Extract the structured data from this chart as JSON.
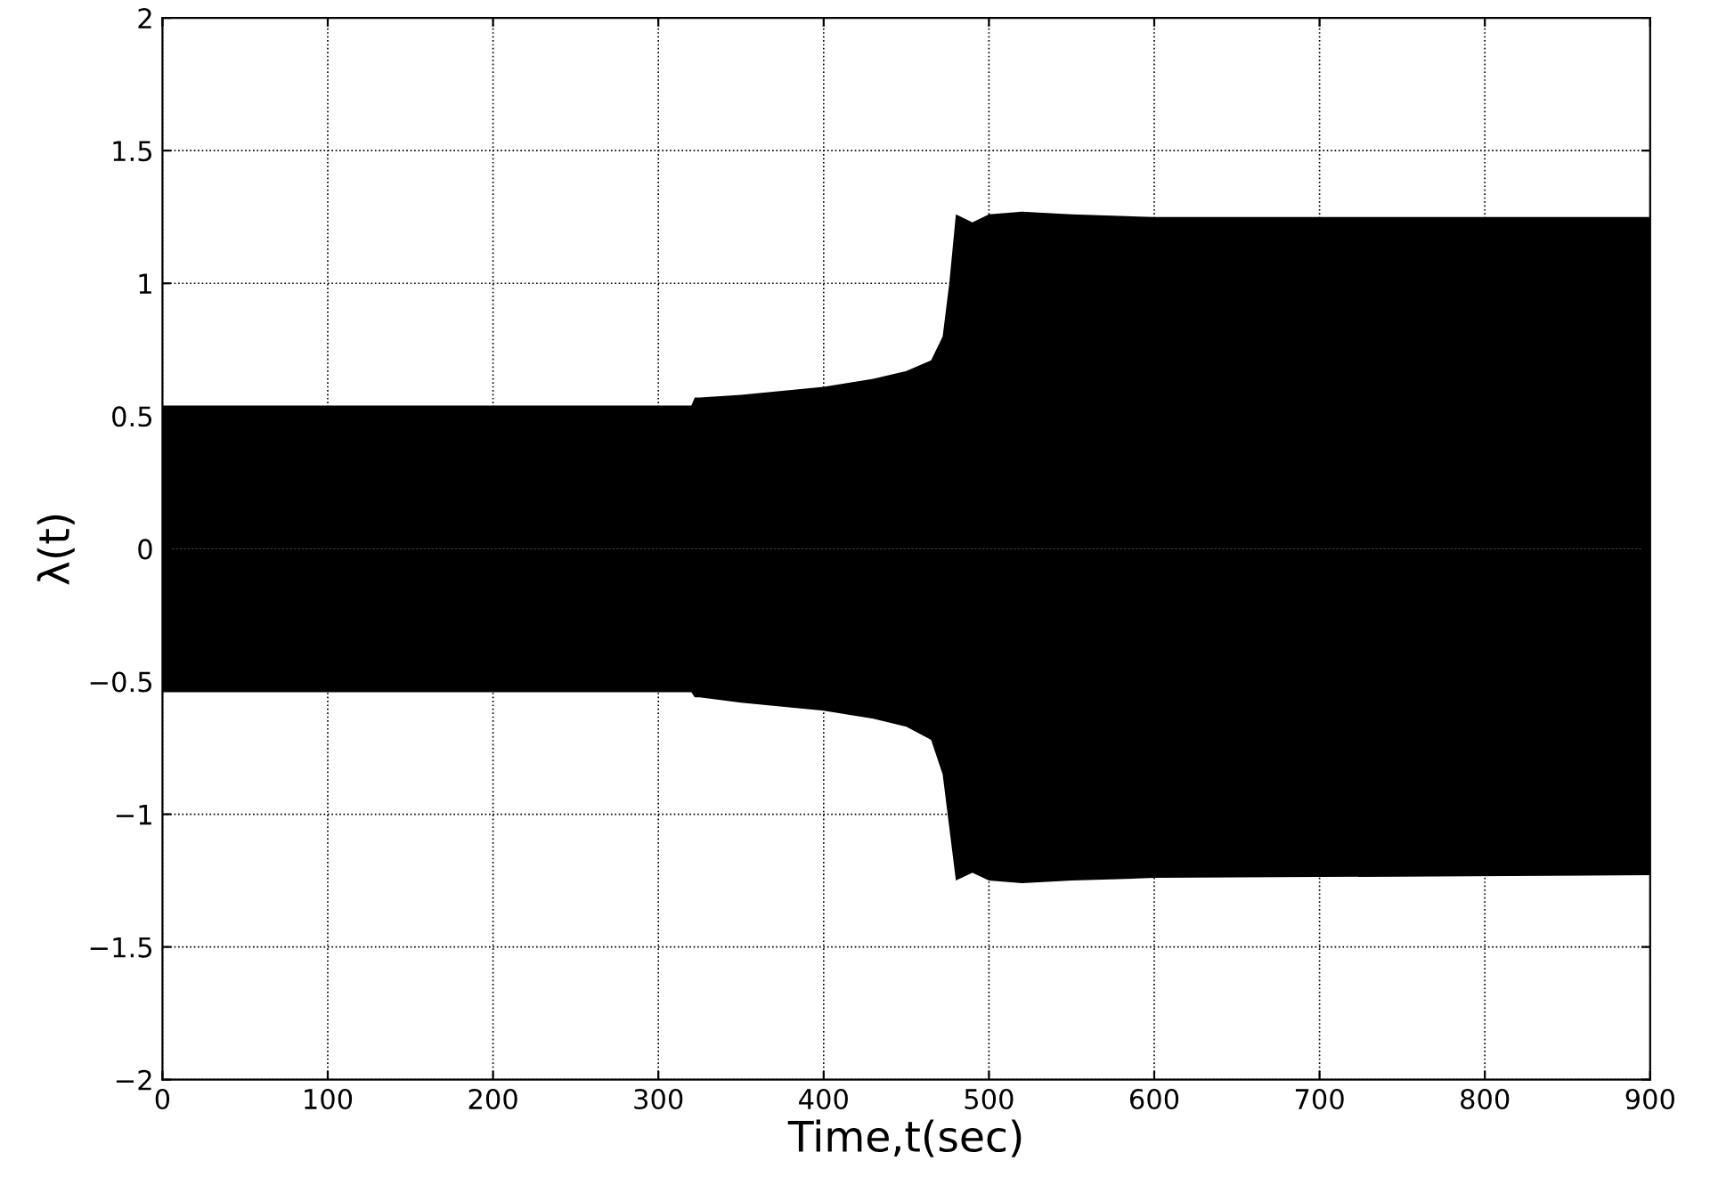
{
  "chart_data": {
    "type": "area",
    "xlabel": "Time,t(sec)",
    "ylabel": "λ(t)",
    "series": [
      {
        "color": "#000000",
        "x": [
          0,
          320,
          322,
          325,
          350,
          400,
          430,
          450,
          465,
          472,
          476,
          480,
          490,
          500,
          520,
          550,
          600,
          900
        ],
        "values": [
          0.54,
          0.54,
          0.57,
          0.57,
          0.58,
          0.61,
          0.64,
          0.67,
          0.71,
          0.8,
          1.0,
          1.26,
          1.23,
          1.26,
          1.27,
          1.26,
          1.25,
          1.25
        ]
      },
      {
        "color": "#000000",
        "x": [
          0,
          320,
          322,
          325,
          350,
          400,
          430,
          450,
          465,
          472,
          476,
          480,
          490,
          500,
          520,
          550,
          600,
          900
        ],
        "values": [
          -0.54,
          -0.54,
          -0.56,
          -0.56,
          -0.58,
          -0.61,
          -0.64,
          -0.67,
          -0.72,
          -0.85,
          -1.05,
          -1.25,
          -1.22,
          -1.25,
          -1.26,
          -1.25,
          -1.24,
          -1.23
        ]
      }
    ],
    "xlim": [
      0,
      900
    ],
    "xticks": [
      0,
      100,
      200,
      300,
      400,
      500,
      600,
      700,
      800,
      900
    ],
    "ylim": [
      -2,
      2
    ],
    "yticks": [
      -2,
      -1.5,
      -1,
      -0.5,
      0,
      0.5,
      1,
      1.5,
      2
    ],
    "grid": true,
    "line_style": "dotted"
  }
}
